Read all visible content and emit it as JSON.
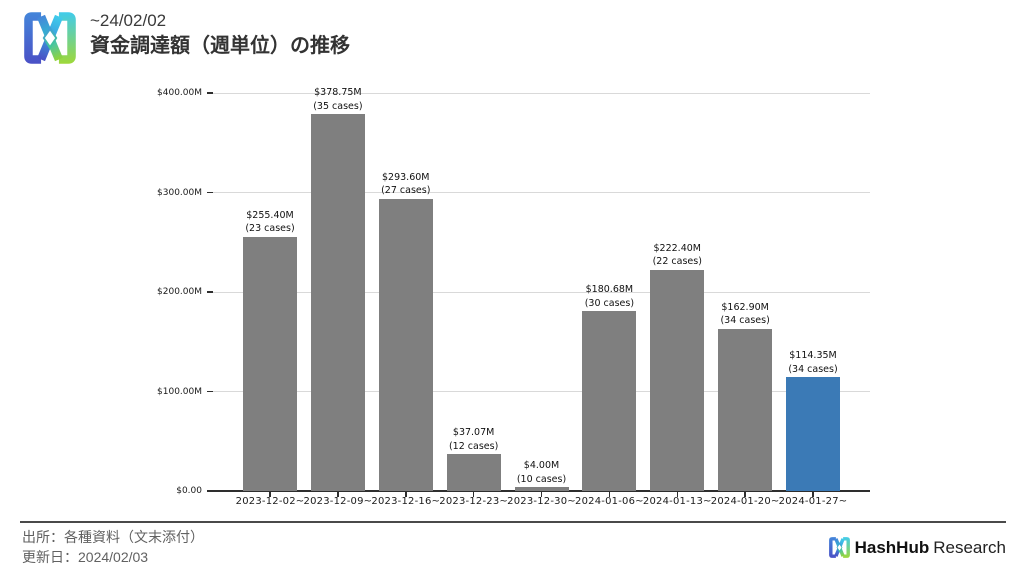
{
  "header": {
    "period": "~24/02/02",
    "title": "資金調達額（週単位）の推移"
  },
  "footer": {
    "source": "出所：各種資料（文末添付）",
    "updated": "更新日：2024/02/03"
  },
  "brand": {
    "name_bold": "HashHub",
    "name_regular": "Research",
    "gradient": [
      "#4486da",
      "#4a50c6",
      "#40cbec",
      "#9fd838"
    ]
  },
  "chart_data": {
    "type": "bar",
    "categories": [
      "2023-12-02~",
      "2023-12-09~",
      "2023-12-16~",
      "2023-12-23~",
      "2023-12-30~",
      "2024-01-06~",
      "2024-01-13~",
      "2024-01-20~",
      "2024-01-27~"
    ],
    "values": [
      255.4,
      378.75,
      293.6,
      37.07,
      4.0,
      180.68,
      222.4,
      162.9,
      114.35
    ],
    "cases": [
      23,
      35,
      27,
      12,
      10,
      30,
      22,
      34,
      34
    ],
    "value_labels": [
      "$255.40M",
      "$378.75M",
      "$293.60M",
      "$37.07M",
      "$4.00M",
      "$180.68M",
      "$222.40M",
      "$162.90M",
      "$114.35M"
    ],
    "case_labels": [
      "(23 cases)",
      "(35 cases)",
      "(27 cases)",
      "(12 cases)",
      "(10 cases)",
      "(30 cases)",
      "(22 cases)",
      "(34 cases)",
      "(34 cases)"
    ],
    "ylim": [
      0,
      400
    ],
    "ytick_values": [
      0,
      100,
      200,
      300,
      400
    ],
    "ytick_labels": [
      "$0.00",
      "$100.00M",
      "$200.00M",
      "$300.00M",
      "$400.00M"
    ],
    "bar_color": "#7f7f7f",
    "highlight_color": "#3b7ab6",
    "highlight_index": 8,
    "grid": true,
    "legend": false,
    "title": "資金調達額（週単位）の推移",
    "xlabel": "",
    "ylabel": ""
  }
}
